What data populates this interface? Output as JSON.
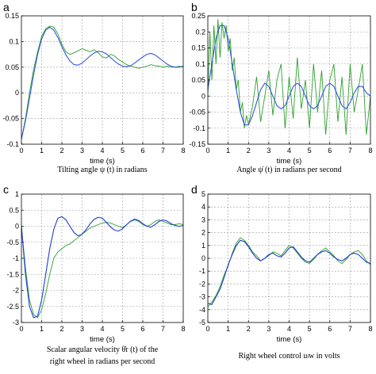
{
  "chart_data": [
    {
      "id": "a",
      "panel_label": "a",
      "type": "line",
      "xlabel": "time (s)",
      "caption_lines": [
        "Tilting angle ψ (t) in radians"
      ],
      "xlim": [
        0,
        8
      ],
      "ylim": [
        -0.1,
        0.15
      ],
      "xticks": [
        0,
        1,
        2,
        3,
        4,
        5,
        6,
        7,
        8
      ],
      "yticks": [
        -0.1,
        -0.05,
        0,
        0.05,
        0.1,
        0.15
      ],
      "ytick_labels": [
        "-0.1",
        "-0.05",
        "0",
        "0.05",
        "0.1",
        "0.15"
      ],
      "grid": true,
      "series": [
        {
          "color": "#2ca02c",
          "x": [
            0,
            0.2,
            0.4,
            0.6,
            0.8,
            1.0,
            1.2,
            1.4,
            1.6,
            1.8,
            2.0,
            2.2,
            2.4,
            2.6,
            2.8,
            3.0,
            3.2,
            3.4,
            3.6,
            3.8,
            4.0,
            4.2,
            4.4,
            4.6,
            4.8,
            5.0,
            5.2,
            5.4,
            5.6,
            5.8,
            6.0,
            6.2,
            6.4,
            6.6,
            6.8,
            7.0,
            7.2,
            7.4,
            7.6,
            7.8,
            8.0
          ],
          "values": [
            -0.09,
            -0.05,
            0.0,
            0.045,
            0.08,
            0.11,
            0.125,
            0.13,
            0.128,
            0.115,
            0.095,
            0.08,
            0.075,
            0.078,
            0.082,
            0.086,
            0.083,
            0.08,
            0.084,
            0.078,
            0.07,
            0.068,
            0.075,
            0.072,
            0.065,
            0.06,
            0.055,
            0.052,
            0.05,
            0.048,
            0.05,
            0.052,
            0.055,
            0.053,
            0.052,
            0.05,
            0.052,
            0.05,
            0.05,
            0.052,
            0.05
          ]
        },
        {
          "color": "#3355dd",
          "x": [
            0,
            0.2,
            0.4,
            0.6,
            0.8,
            1.0,
            1.2,
            1.4,
            1.6,
            1.8,
            2.0,
            2.2,
            2.4,
            2.6,
            2.8,
            3.0,
            3.2,
            3.4,
            3.6,
            3.8,
            4.0,
            4.2,
            4.4,
            4.6,
            4.8,
            5.0,
            5.2,
            5.4,
            5.6,
            5.8,
            6.0,
            6.2,
            6.4,
            6.6,
            6.8,
            7.0,
            7.2,
            7.4,
            7.6,
            7.8,
            8.0
          ],
          "values": [
            -0.09,
            -0.055,
            -0.01,
            0.035,
            0.075,
            0.105,
            0.122,
            0.128,
            0.122,
            0.108,
            0.09,
            0.074,
            0.062,
            0.055,
            0.054,
            0.058,
            0.065,
            0.072,
            0.078,
            0.081,
            0.08,
            0.076,
            0.069,
            0.062,
            0.056,
            0.052,
            0.051,
            0.053,
            0.058,
            0.064,
            0.07,
            0.075,
            0.077,
            0.074,
            0.068,
            0.062,
            0.056,
            0.052,
            0.05,
            0.05,
            0.052
          ]
        }
      ]
    },
    {
      "id": "b",
      "panel_label": "b",
      "type": "line",
      "xlabel": "time (s)",
      "caption_lines": [
        "Angle ψ̇ (t) in radians per second"
      ],
      "xlim": [
        0,
        8
      ],
      "ylim": [
        -0.15,
        0.25
      ],
      "xticks": [
        0,
        1,
        2,
        3,
        4,
        5,
        6,
        7,
        8
      ],
      "yticks": [
        -0.15,
        -0.1,
        -0.05,
        0,
        0.05,
        0.1,
        0.15,
        0.2,
        0.25
      ],
      "ytick_labels": [
        "-0.15",
        "-0.1",
        "-0.05",
        "0",
        "0.05",
        "0.1",
        "0.15",
        "0.2",
        "0.25"
      ],
      "grid": true,
      "series": [
        {
          "color": "#2ca02c",
          "x": [
            0,
            0.1,
            0.2,
            0.3,
            0.4,
            0.5,
            0.6,
            0.7,
            0.8,
            0.9,
            1.0,
            1.1,
            1.2,
            1.3,
            1.4,
            1.5,
            1.6,
            1.7,
            1.8,
            1.9,
            2.0,
            2.2,
            2.4,
            2.6,
            2.8,
            3.0,
            3.2,
            3.4,
            3.6,
            3.8,
            4.0,
            4.2,
            4.4,
            4.6,
            4.8,
            5.0,
            5.2,
            5.4,
            5.6,
            5.8,
            6.0,
            6.2,
            6.4,
            6.6,
            6.8,
            7.0,
            7.2,
            7.4,
            7.6,
            7.8,
            8.0
          ],
          "values": [
            0.0,
            0.2,
            0.05,
            0.22,
            0.1,
            0.24,
            0.12,
            0.23,
            0.18,
            0.22,
            0.14,
            0.18,
            0.08,
            0.12,
            0.02,
            0.05,
            -0.05,
            -0.02,
            -0.1,
            -0.06,
            -0.09,
            -0.03,
            0.06,
            -0.08,
            0.0,
            0.08,
            -0.06,
            0.05,
            0.1,
            -0.1,
            0.06,
            -0.07,
            0.12,
            -0.04,
            0.05,
            -0.1,
            0.1,
            -0.05,
            0.08,
            -0.12,
            0.05,
            0.1,
            -0.08,
            0.06,
            -0.12,
            0.1,
            -0.05,
            0.02,
            0.1,
            -0.12,
            0.0
          ]
        },
        {
          "color": "#3355dd",
          "x": [
            0,
            0.2,
            0.4,
            0.6,
            0.8,
            1.0,
            1.2,
            1.4,
            1.6,
            1.8,
            2.0,
            2.2,
            2.4,
            2.6,
            2.8,
            3.0,
            3.2,
            3.4,
            3.6,
            3.8,
            4.0,
            4.2,
            4.4,
            4.6,
            4.8,
            5.0,
            5.2,
            5.4,
            5.6,
            5.8,
            6.0,
            6.2,
            6.4,
            6.6,
            6.8,
            7.0,
            7.2,
            7.4,
            7.6,
            7.8,
            8.0
          ],
          "values": [
            0.02,
            0.1,
            0.18,
            0.22,
            0.22,
            0.18,
            0.1,
            0.02,
            -0.05,
            -0.09,
            -0.09,
            -0.06,
            -0.02,
            0.02,
            0.04,
            0.03,
            0.0,
            -0.03,
            -0.04,
            -0.03,
            0.0,
            0.03,
            0.04,
            0.03,
            0.0,
            -0.03,
            -0.04,
            -0.03,
            0.0,
            0.03,
            0.04,
            0.03,
            0.0,
            -0.03,
            -0.04,
            -0.02,
            0.01,
            0.03,
            0.03,
            0.01,
            0.0
          ]
        }
      ]
    },
    {
      "id": "c",
      "panel_label": "c",
      "type": "line",
      "xlabel": "time (s)",
      "caption_lines": [
        "Scalar angular velocity θ̇r (t) of the",
        "right wheel in radians per second"
      ],
      "xlim": [
        0,
        8
      ],
      "ylim": [
        -3,
        1
      ],
      "xticks": [
        0,
        1,
        2,
        3,
        4,
        5,
        6,
        7,
        8
      ],
      "yticks": [
        -3,
        -2.5,
        -2,
        -1.5,
        -1,
        -0.5,
        0,
        0.5,
        1
      ],
      "ytick_labels": [
        "-3",
        "-2.5",
        "-2",
        "-1.5",
        "-1",
        "-0.5",
        "0",
        "0.5",
        "1"
      ],
      "grid": true,
      "series": [
        {
          "color": "#2ca02c",
          "x": [
            0,
            0.2,
            0.4,
            0.6,
            0.8,
            1.0,
            1.2,
            1.4,
            1.6,
            1.8,
            2.0,
            2.2,
            2.4,
            2.6,
            2.8,
            3.0,
            3.2,
            3.4,
            3.6,
            3.8,
            4.0,
            4.2,
            4.4,
            4.6,
            4.8,
            5.0,
            5.2,
            5.4,
            5.6,
            5.8,
            6.0,
            6.2,
            6.4,
            6.6,
            6.8,
            7.0,
            7.2,
            7.4,
            7.6,
            7.8,
            8.0
          ],
          "values": [
            0.0,
            -1.3,
            -2.3,
            -2.75,
            -2.85,
            -2.6,
            -2.1,
            -1.5,
            -1.0,
            -0.8,
            -0.7,
            -0.6,
            -0.55,
            -0.45,
            -0.35,
            -0.25,
            -0.15,
            -0.05,
            0.0,
            0.05,
            0.1,
            0.12,
            0.1,
            0.05,
            0.0,
            -0.05,
            0.05,
            0.15,
            0.2,
            0.15,
            0.05,
            0.0,
            0.05,
            0.15,
            0.2,
            0.15,
            0.1,
            0.05,
            0.05,
            0.08,
            0.05
          ]
        },
        {
          "color": "#1f3fcf",
          "x": [
            0,
            0.2,
            0.4,
            0.6,
            0.8,
            1.0,
            1.2,
            1.4,
            1.6,
            1.8,
            2.0,
            2.2,
            2.4,
            2.6,
            2.8,
            3.0,
            3.2,
            3.4,
            3.6,
            3.8,
            4.0,
            4.2,
            4.4,
            4.6,
            4.8,
            5.0,
            5.2,
            5.4,
            5.6,
            5.8,
            6.0,
            6.2,
            6.4,
            6.6,
            6.8,
            7.0,
            7.2,
            7.4,
            7.6,
            7.8,
            8.0
          ],
          "values": [
            0.0,
            -1.5,
            -2.5,
            -2.85,
            -2.8,
            -2.3,
            -1.5,
            -0.7,
            -0.1,
            0.25,
            0.3,
            0.2,
            0.0,
            -0.2,
            -0.3,
            -0.25,
            -0.1,
            0.08,
            0.22,
            0.28,
            0.25,
            0.12,
            -0.02,
            -0.12,
            -0.15,
            -0.08,
            0.05,
            0.16,
            0.22,
            0.18,
            0.08,
            0.0,
            -0.03,
            0.05,
            0.15,
            0.2,
            0.16,
            0.08,
            0.02,
            0.0,
            0.02
          ]
        }
      ]
    },
    {
      "id": "d",
      "panel_label": "d",
      "type": "line",
      "xlabel": "time (s)",
      "caption_lines": [
        "Right wheel control uₗw in volts"
      ],
      "xlim": [
        0,
        8
      ],
      "ylim": [
        -5,
        5
      ],
      "xticks": [
        0,
        1,
        2,
        3,
        4,
        5,
        6,
        7,
        8
      ],
      "yticks": [
        -5,
        -4,
        -3,
        -2,
        -1,
        0,
        1,
        2,
        3,
        4,
        5
      ],
      "ytick_labels": [
        "-5",
        "-4",
        "-3",
        "-2",
        "-1",
        "0",
        "1",
        "2",
        "3",
        "4",
        "5"
      ],
      "grid": true,
      "series": [
        {
          "color": "#2ca02c",
          "x": [
            0,
            0.2,
            0.4,
            0.6,
            0.8,
            1.0,
            1.2,
            1.4,
            1.6,
            1.8,
            2.0,
            2.2,
            2.4,
            2.6,
            2.8,
            3.0,
            3.2,
            3.4,
            3.6,
            3.8,
            4.0,
            4.2,
            4.4,
            4.6,
            4.8,
            5.0,
            5.2,
            5.4,
            5.6,
            5.8,
            6.0,
            6.2,
            6.4,
            6.6,
            6.8,
            7.0,
            7.2,
            7.4,
            7.6,
            7.8,
            8.0
          ],
          "values": [
            -3.8,
            -3.4,
            -2.9,
            -2.2,
            -1.3,
            -0.6,
            0.4,
            1.2,
            1.6,
            1.4,
            1.0,
            0.5,
            0.2,
            -0.2,
            0.0,
            0.2,
            0.5,
            0.4,
            0.2,
            0.6,
            1.0,
            0.8,
            0.4,
            0.0,
            -0.3,
            -0.4,
            -0.1,
            0.3,
            0.6,
            0.8,
            0.5,
            0.2,
            -0.2,
            -0.4,
            -0.1,
            0.3,
            0.5,
            0.6,
            0.3,
            -0.2,
            -0.5
          ]
        },
        {
          "color": "#1f3fcf",
          "x": [
            0,
            0.2,
            0.4,
            0.6,
            0.8,
            1.0,
            1.2,
            1.4,
            1.6,
            1.8,
            2.0,
            2.2,
            2.4,
            2.6,
            2.8,
            3.0,
            3.2,
            3.4,
            3.6,
            3.8,
            4.0,
            4.2,
            4.4,
            4.6,
            4.8,
            5.0,
            5.2,
            5.4,
            5.6,
            5.8,
            6.0,
            6.2,
            6.4,
            6.6,
            6.8,
            7.0,
            7.2,
            7.4,
            7.6,
            7.8,
            8.0
          ],
          "values": [
            -3.5,
            -3.6,
            -3.0,
            -2.4,
            -1.5,
            -0.5,
            0.3,
            1.0,
            1.4,
            1.3,
            0.9,
            0.4,
            0.0,
            -0.2,
            0.0,
            0.3,
            0.4,
            0.2,
            0.1,
            0.4,
            0.8,
            0.9,
            0.5,
            0.1,
            -0.2,
            -0.3,
            0.0,
            0.3,
            0.5,
            0.6,
            0.4,
            0.1,
            -0.1,
            -0.2,
            0.0,
            0.3,
            0.4,
            0.3,
            0.0,
            -0.3,
            -0.4
          ]
        }
      ]
    }
  ]
}
